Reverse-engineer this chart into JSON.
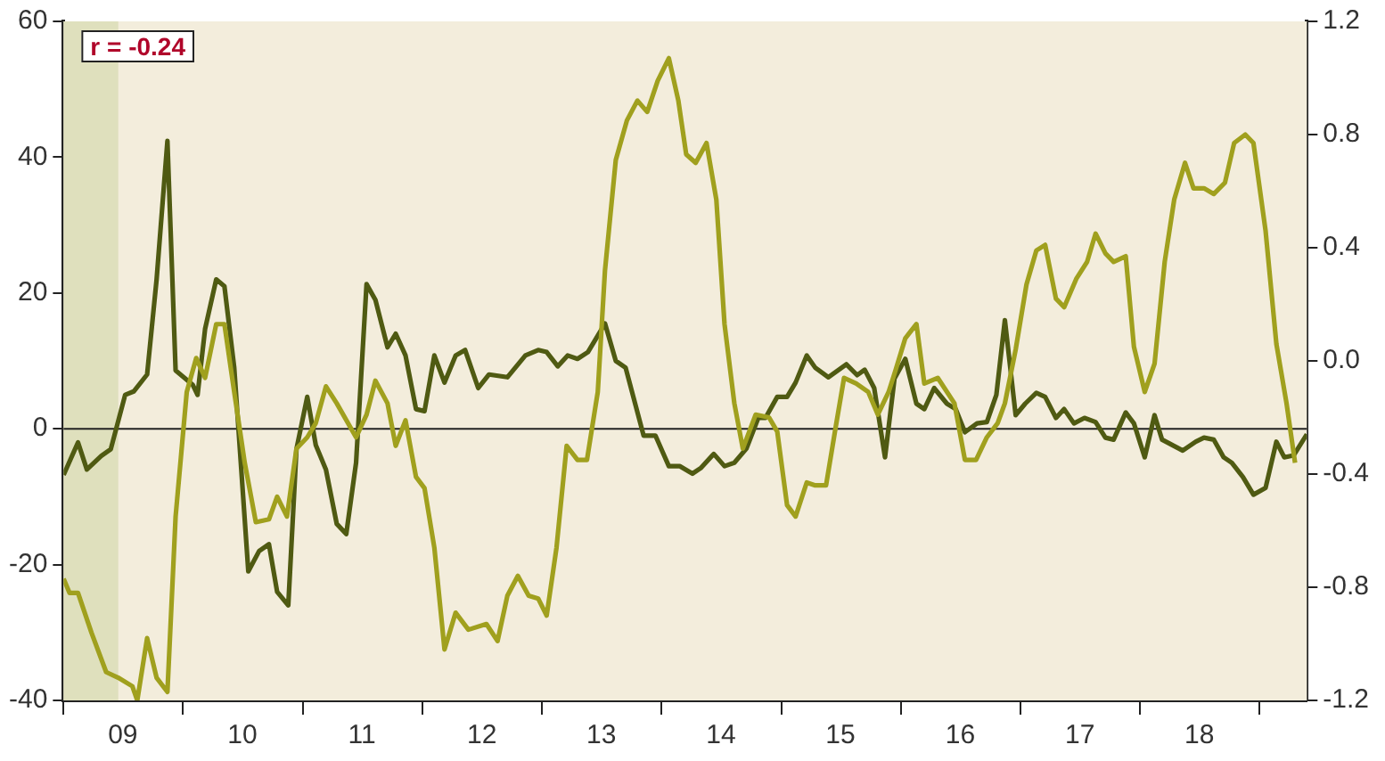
{
  "chart_data": {
    "type": "line",
    "xlim": [
      "2009-01-01",
      "2019-05-25"
    ],
    "xticks": [
      {
        "value": "2009-01-01",
        "label": null
      },
      {
        "value": "2009-07-01",
        "label": "09"
      },
      {
        "value": "2010-01-01",
        "label": null
      },
      {
        "value": "2010-07-01",
        "label": "10"
      },
      {
        "value": "2011-01-01",
        "label": null
      },
      {
        "value": "2011-07-01",
        "label": "11"
      },
      {
        "value": "2012-01-01",
        "label": null
      },
      {
        "value": "2012-07-01",
        "label": "12"
      },
      {
        "value": "2013-01-01",
        "label": null
      },
      {
        "value": "2013-07-01",
        "label": "13"
      },
      {
        "value": "2014-01-01",
        "label": null
      },
      {
        "value": "2014-07-01",
        "label": "14"
      },
      {
        "value": "2015-01-01",
        "label": null
      },
      {
        "value": "2015-07-01",
        "label": "15"
      },
      {
        "value": "2016-01-01",
        "label": null
      },
      {
        "value": "2016-07-01",
        "label": "16"
      },
      {
        "value": "2017-01-01",
        "label": null
      },
      {
        "value": "2017-07-01",
        "label": "17"
      },
      {
        "value": "2018-01-01",
        "label": null
      },
      {
        "value": "2018-07-01",
        "label": "18"
      },
      {
        "value": "2019-01-01",
        "label": null
      }
    ],
    "ylim": [
      -40,
      60
    ],
    "yticks": [
      -40,
      -20,
      0,
      20,
      40,
      60
    ],
    "y2lim": [
      -1.2,
      1.2
    ],
    "y2ticks": [
      -1.2,
      -0.8,
      -0.4,
      {
        "value": 0,
        "label": "0.0"
      },
      0.4,
      0.8,
      1.2
    ],
    "grid": false,
    "legend": false,
    "marker": "none",
    "line_style": "solid",
    "annotations": [
      "r = -0.24"
    ],
    "ref_lines": [
      {
        "axis": "y",
        "value": 0,
        "label": null,
        "color": "#222222"
      }
    ],
    "bands": [
      {
        "axis": "x",
        "from": "2009-01-01",
        "to": "2009-06-17",
        "label": null,
        "color": "#dfe0bd"
      }
    ],
    "series": [
      {
        "color": "#a0a01e",
        "axis": "y2",
        "x": [
          "2009-01-01",
          "2009-01-19",
          "2009-02-14",
          "2009-03-27",
          "2009-05-11",
          "2009-06-17",
          "2009-07-30",
          "2009-08-14",
          "2009-09-13",
          "2009-10-12",
          "2009-11-14",
          "2009-12-09",
          "2010-01-12",
          "2010-02-10",
          "2010-03-09",
          "2010-04-12",
          "2010-05-07",
          "2010-06-06",
          "2010-07-08",
          "2010-08-11",
          "2010-09-20",
          "2010-10-15",
          "2010-11-14",
          "2010-12-13",
          "2011-01-15",
          "2011-02-10",
          "2011-03-13",
          "2011-04-15",
          "2011-06-13",
          "2011-07-15",
          "2011-08-11",
          "2011-09-17",
          "2011-10-12",
          "2011-11-11",
          "2011-12-13",
          "2012-01-08",
          "2012-02-07",
          "2012-03-09",
          "2012-04-12",
          "2012-05-21",
          "2012-07-15",
          "2012-08-18",
          "2012-09-17",
          "2012-10-19",
          "2012-11-21",
          "2012-12-20",
          "2013-01-15",
          "2013-02-14",
          "2013-03-17",
          "2013-04-19",
          "2013-05-18",
          "2013-06-20",
          "2013-07-12",
          "2013-08-14",
          "2013-09-17",
          "2013-10-19",
          "2013-11-18",
          "2013-12-20",
          "2014-01-23",
          "2014-02-21",
          "2014-03-17",
          "2014-04-15",
          "2014-05-18",
          "2014-06-17",
          "2014-07-12",
          "2014-08-11",
          "2014-09-06",
          "2014-10-15",
          "2014-11-25",
          "2014-12-20",
          "2015-01-19",
          "2015-02-14",
          "2015-03-20",
          "2015-04-15",
          "2015-05-18",
          "2015-06-17",
          "2015-07-12",
          "2015-08-18",
          "2015-09-24",
          "2015-10-23",
          "2015-11-25",
          "2015-12-17",
          "2016-01-15",
          "2016-02-18",
          "2016-03-13",
          "2016-04-23",
          "2016-06-13",
          "2016-07-15",
          "2016-08-18",
          "2016-09-20",
          "2016-10-23",
          "2016-11-14",
          "2016-12-17",
          "2017-01-19",
          "2017-02-18",
          "2017-03-17",
          "2017-04-19",
          "2017-05-14",
          "2017-06-20",
          "2017-07-23",
          "2017-08-18",
          "2017-09-17",
          "2017-10-12",
          "2017-11-18",
          "2017-12-13",
          "2018-01-15",
          "2018-02-14",
          "2018-03-17",
          "2018-04-15",
          "2018-05-18",
          "2018-06-13",
          "2018-07-15",
          "2018-08-14",
          "2018-09-17",
          "2018-10-15",
          "2018-11-18",
          "2018-12-13",
          "2019-01-19",
          "2019-02-21",
          "2019-03-24",
          "2019-04-19"
        ],
        "values": [
          -0.77,
          -0.82,
          -0.82,
          -0.96,
          -1.1,
          -1.12,
          -1.15,
          -1.2,
          -0.98,
          -1.12,
          -1.17,
          -0.55,
          -0.11,
          0.01,
          -0.06,
          0.13,
          0.13,
          -0.11,
          -0.36,
          -0.57,
          -0.56,
          -0.48,
          -0.55,
          -0.31,
          -0.27,
          -0.22,
          -0.09,
          -0.15,
          -0.27,
          -0.19,
          -0.07,
          -0.15,
          -0.3,
          -0.21,
          -0.41,
          -0.45,
          -0.66,
          -1.02,
          -0.89,
          -0.95,
          -0.93,
          -0.99,
          -0.83,
          -0.76,
          -0.83,
          -0.84,
          -0.9,
          -0.66,
          -0.3,
          -0.35,
          -0.35,
          -0.11,
          0.32,
          0.71,
          0.85,
          0.92,
          0.88,
          0.99,
          1.07,
          0.92,
          0.73,
          0.7,
          0.77,
          0.57,
          0.13,
          -0.15,
          -0.31,
          -0.19,
          -0.2,
          -0.25,
          -0.51,
          -0.55,
          -0.43,
          -0.44,
          -0.44,
          -0.23,
          -0.06,
          -0.08,
          -0.11,
          -0.19,
          -0.11,
          -0.03,
          0.08,
          0.13,
          -0.08,
          -0.06,
          -0.15,
          -0.35,
          -0.35,
          -0.27,
          -0.22,
          -0.15,
          0.04,
          0.27,
          0.39,
          0.41,
          0.22,
          0.19,
          0.29,
          0.35,
          0.45,
          0.38,
          0.35,
          0.37,
          0.05,
          -0.11,
          -0.01,
          0.35,
          0.57,
          0.7,
          0.61,
          0.61,
          0.59,
          0.63,
          0.77,
          0.8,
          0.77,
          0.46,
          0.06,
          -0.15,
          -0.36
        ]
      },
      {
        "color": "#4f5a12",
        "axis": "y",
        "x": [
          "2009-01-01",
          "2009-02-14",
          "2009-03-13",
          "2009-04-26",
          "2009-05-25",
          "2009-07-08",
          "2009-08-03",
          "2009-09-13",
          "2009-10-12",
          "2009-11-14",
          "2009-12-09",
          "2010-01-30",
          "2010-02-14",
          "2010-03-09",
          "2010-04-12",
          "2010-05-07",
          "2010-06-06",
          "2010-07-19",
          "2010-08-21",
          "2010-09-20",
          "2010-10-15",
          "2010-11-18",
          "2010-12-13",
          "2011-01-15",
          "2011-02-10",
          "2011-03-13",
          "2011-04-15",
          "2011-05-14",
          "2011-06-13",
          "2011-07-15",
          "2011-08-11",
          "2011-09-17",
          "2011-10-12",
          "2011-11-11",
          "2011-12-13",
          "2012-01-08",
          "2012-02-07",
          "2012-03-09",
          "2012-04-12",
          "2012-05-11",
          "2012-06-20",
          "2012-07-23",
          "2012-09-17",
          "2012-11-11",
          "2012-12-20",
          "2013-01-15",
          "2013-02-18",
          "2013-03-20",
          "2013-04-19",
          "2013-05-21",
          "2013-07-12",
          "2013-08-14",
          "2013-09-13",
          "2013-11-07",
          "2013-12-13",
          "2014-01-23",
          "2014-02-25",
          "2014-04-05",
          "2014-04-30",
          "2014-06-09",
          "2014-07-12",
          "2014-08-11",
          "2014-09-17",
          "2014-10-23",
          "2014-11-14",
          "2014-12-20",
          "2015-01-19",
          "2015-02-14",
          "2015-03-20",
          "2015-04-15",
          "2015-05-25",
          "2015-07-19",
          "2015-08-21",
          "2015-09-13",
          "2015-10-12",
          "2015-11-14",
          "2015-12-13",
          "2016-01-15",
          "2016-02-18",
          "2016-03-13",
          "2016-04-12",
          "2016-05-21",
          "2016-06-17",
          "2016-07-15",
          "2016-08-21",
          "2016-09-20",
          "2016-10-19",
          "2016-11-14",
          "2016-12-17",
          "2017-01-15",
          "2017-02-18",
          "2017-03-17",
          "2017-04-19",
          "2017-05-14",
          "2017-06-13",
          "2017-07-15",
          "2017-08-18",
          "2017-09-17",
          "2017-10-12",
          "2017-11-18",
          "2017-12-13",
          "2018-01-15",
          "2018-02-14",
          "2018-03-09",
          "2018-05-11",
          "2018-06-20",
          "2018-07-15",
          "2018-08-14",
          "2018-09-13",
          "2018-10-08",
          "2018-11-11",
          "2018-12-13",
          "2019-01-19",
          "2019-02-21",
          "2019-03-17",
          "2019-04-15",
          "2019-05-25"
        ],
        "values": [
          -6.8,
          -2,
          -6,
          -4,
          -3,
          5,
          5.5,
          8,
          22,
          42.4,
          8.6,
          6.5,
          5,
          14.7,
          22,
          21,
          9,
          -21,
          -18,
          -17,
          -24,
          -26,
          -3,
          4.7,
          -2.4,
          -6,
          -14,
          -15.5,
          -5,
          21.3,
          19,
          12,
          14,
          10.8,
          2.9,
          2.6,
          10.8,
          6.8,
          10.8,
          11.6,
          6,
          8,
          7.6,
          10.8,
          11.6,
          11.3,
          9.2,
          10.8,
          10.3,
          11.3,
          15.5,
          10,
          9,
          -1,
          -1,
          -5.5,
          -5.5,
          -6.6,
          -5.8,
          -3.7,
          -5.5,
          -5,
          -2.9,
          1.6,
          1.6,
          4.7,
          4.7,
          6.8,
          10.8,
          9,
          7.6,
          9.5,
          7.9,
          8.7,
          6,
          -4.2,
          7.4,
          10.3,
          3.7,
          2.9,
          6,
          3.7,
          2.9,
          -0.5,
          0.8,
          1,
          5,
          16,
          2,
          3.7,
          5.3,
          4.7,
          1.6,
          2.9,
          0.8,
          1.6,
          1,
          -1.3,
          -1.6,
          2.4,
          0.8,
          -4.2,
          2,
          -1.6,
          -3.2,
          -1.9,
          -1.3,
          -1.6,
          -4.2,
          -5,
          -7.1,
          -9.7,
          -8.7,
          -1.9,
          -4.2,
          -3.9,
          -0.8
        ]
      }
    ]
  }
}
